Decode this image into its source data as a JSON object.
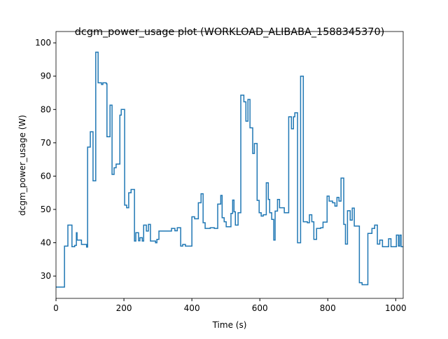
{
  "chart_data": {
    "type": "line",
    "drawstyle": "steps-post",
    "title": "dcgm_power_usage plot (WORKLOAD_ALIBABA_1588345370)",
    "xlabel": "Time (s)",
    "ylabel": "dcgm_power_usage (W)",
    "x": [
      0,
      25,
      35,
      47,
      55,
      60,
      62,
      75,
      85,
      90,
      93,
      101,
      109,
      117,
      124,
      134,
      138,
      148,
      150,
      159,
      165,
      171,
      177,
      188,
      192,
      202,
      208,
      214,
      221,
      231,
      235,
      243,
      247,
      254,
      258,
      266,
      272,
      278,
      293,
      297,
      303,
      340,
      350,
      357,
      367,
      373,
      381,
      400,
      408,
      419,
      427,
      433,
      439,
      454,
      466,
      476,
      485,
      489,
      495,
      501,
      515,
      520,
      524,
      528,
      536,
      544,
      553,
      559,
      565,
      571,
      579,
      584,
      592,
      598,
      604,
      610,
      619,
      625,
      629,
      635,
      641,
      645,
      652,
      658,
      672,
      685,
      693,
      699,
      703,
      711,
      720,
      728,
      740,
      746,
      753,
      759,
      767,
      779,
      786,
      798,
      804,
      814,
      821,
      827,
      833,
      839,
      847,
      852,
      858,
      866,
      872,
      878,
      893,
      901,
      918,
      930,
      938,
      946,
      953,
      961,
      979,
      986,
      1002,
      1008,
      1012,
      1016,
      1022
    ],
    "series": [
      {
        "name": "dcgm_power_usage",
        "color": "#1f77b4",
        "values": [
          26.7,
          39,
          45.3,
          38.8,
          39.2,
          43,
          40.8,
          39.5,
          39.5,
          38.7,
          68.7,
          73.3,
          58.6,
          97.2,
          88,
          87.5,
          88,
          87.7,
          71.8,
          81.3,
          60.5,
          62.5,
          63.6,
          78.3,
          80,
          51.3,
          50.5,
          55,
          56,
          40.5,
          43,
          40.6,
          41.5,
          40.5,
          45.3,
          43.5,
          45.5,
          40.5,
          40,
          41,
          43.5,
          44.3,
          43.6,
          44.5,
          39,
          39.5,
          39,
          47.8,
          47.2,
          52,
          54.7,
          46,
          44.3,
          44.5,
          44.3,
          51.6,
          54.2,
          47.5,
          46.3,
          44.8,
          48.8,
          52.8,
          49.3,
          45.3,
          49,
          84.3,
          82.3,
          76.5,
          83,
          74.5,
          66.8,
          69.8,
          52.7,
          49,
          48,
          48.4,
          58,
          53,
          49,
          47,
          40.8,
          49.5,
          53,
          50.5,
          49,
          77.8,
          74.2,
          77.8,
          79,
          40,
          90,
          46.3,
          46,
          48.4,
          46.3,
          41,
          44.3,
          44.5,
          46.2,
          54,
          52.5,
          52,
          51,
          53.6,
          52.5,
          59.4,
          45.5,
          39.6,
          49.6,
          46.8,
          50.4,
          45,
          28,
          27.4,
          42.8,
          44.3,
          45.3,
          39.6,
          40.8,
          38.8,
          41.2,
          38.8,
          42.3,
          39,
          42.3,
          38.8,
          38.8
        ]
      }
    ],
    "xlim": [
      0,
      1022
    ],
    "ylim": [
      23.3,
      103.4
    ],
    "xticks": [
      0,
      200,
      400,
      600,
      800,
      1000
    ],
    "yticks": [
      30,
      40,
      50,
      60,
      70,
      80,
      90,
      100
    ]
  }
}
